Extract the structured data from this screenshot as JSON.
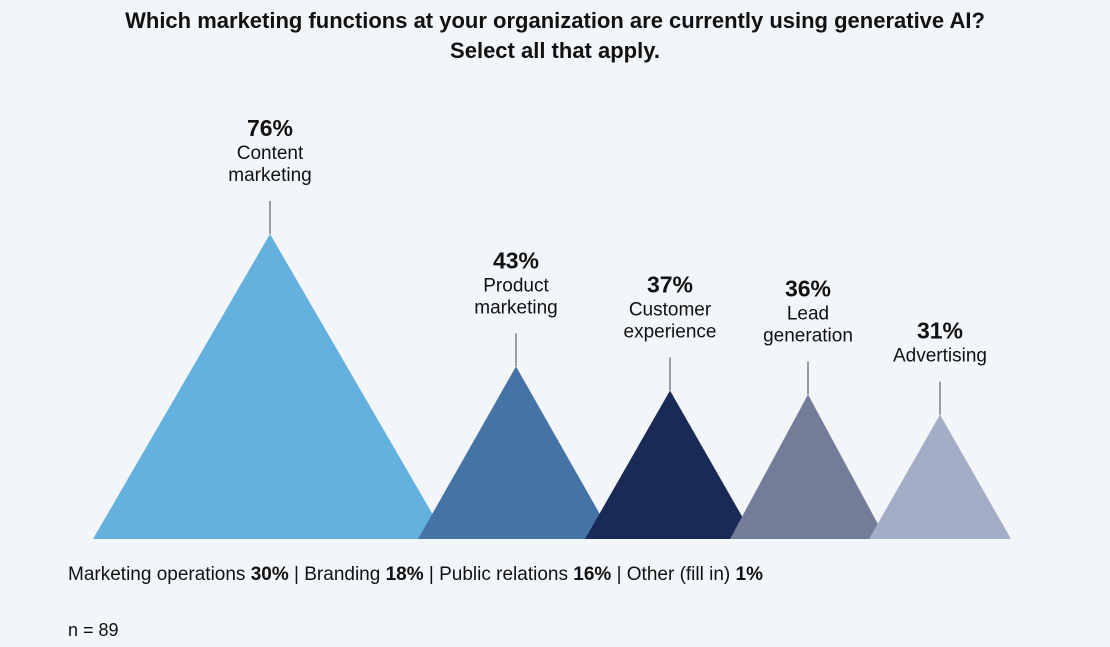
{
  "title": {
    "line1": "Which marketing functions at your organization are currently using generative AI?",
    "line2": "Select all that apply."
  },
  "chart_data": {
    "type": "bar",
    "title": "Which marketing functions at your organization are currently using generative AI? Select all that apply.",
    "unit": "%",
    "categories": [
      "Content marketing",
      "Product marketing",
      "Customer experience",
      "Lead generation",
      "Advertising"
    ],
    "label_lines": [
      [
        "Content",
        "marketing"
      ],
      [
        "Product",
        "marketing"
      ],
      [
        "Customer",
        "experience"
      ],
      [
        "Lead",
        "generation"
      ],
      [
        "Advertising"
      ]
    ],
    "values": [
      76,
      43,
      37,
      36,
      31
    ],
    "value_labels": [
      "76%",
      "43%",
      "37%",
      "36%",
      "31%"
    ],
    "colors": [
      "#64b1e0",
      "#4673a6",
      "#1a2a57",
      "#737c98",
      "#a3aec6"
    ],
    "ylim": [
      0,
      76
    ],
    "other": [
      {
        "label": "Marketing operations",
        "value": "30%"
      },
      {
        "label": "Branding",
        "value": "18%"
      },
      {
        "label": "Public relations",
        "value": "16%"
      },
      {
        "label": "Other (fill in)",
        "value": "1%"
      }
    ]
  },
  "footer": {
    "separator": "|"
  },
  "sample": "n = 89"
}
